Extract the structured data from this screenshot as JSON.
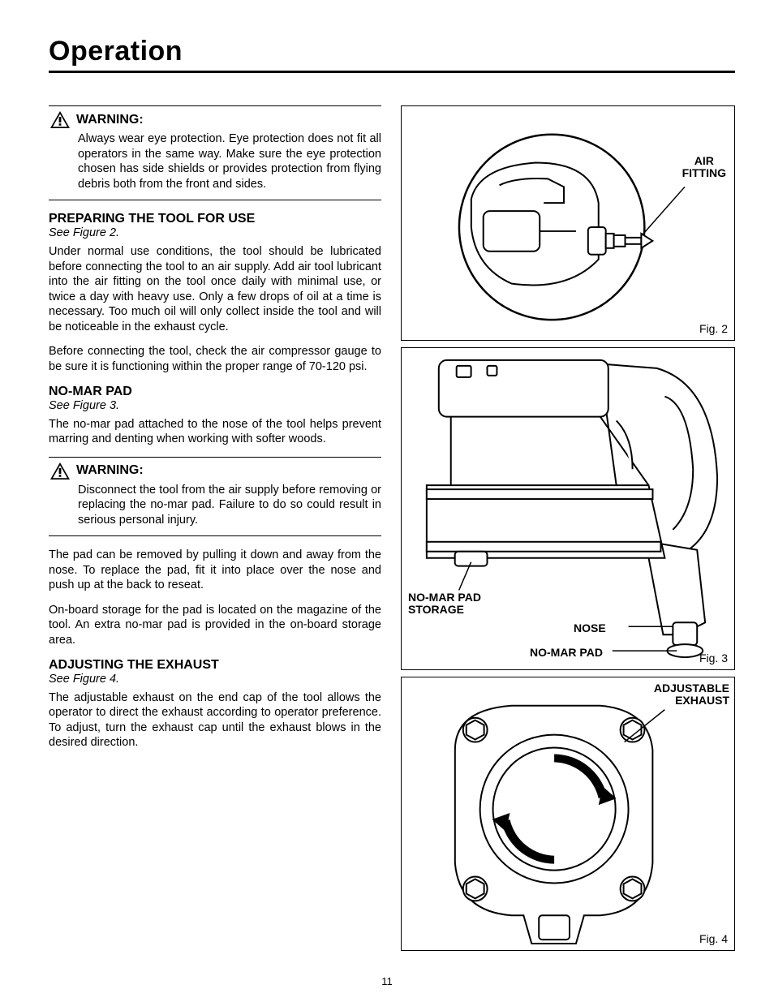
{
  "page_title": "Operation",
  "page_number": "11",
  "warning_label": "WARNING:",
  "warning1_body": "Always wear eye protection. Eye protection does not fit all operators in the same way. Make sure the eye protection chosen has side shields or provides protection from flying debris both from the front and sides.",
  "sec1": {
    "head": "PREPARING THE TOOL FOR USE",
    "see": "See Figure 2.",
    "p1": "Under normal use conditions, the tool should be lubricated before connecting the tool to an air supply. Add air tool lubricant into the air fitting on the tool once daily with minimal use, or twice a day with heavy use. Only a few drops of oil at a time is necessary. Too much oil will only collect inside the tool and will be noticeable in the exhaust cycle.",
    "p2": "Before connecting the tool, check the air compressor gauge to be sure it is functioning within the proper range of 70-120 psi."
  },
  "sec2": {
    "head": "NO-MAR PAD",
    "see": "See Figure 3.",
    "p1": "The no-mar pad attached to the nose of the tool helps prevent marring and denting when working with softer woods."
  },
  "warning2_body": "Disconnect the tool from the air supply before removing or replacing the no-mar pad. Failure to do so could result in serious personal injury.",
  "sec2b": {
    "p1": "The pad can be removed by pulling it down and away from the nose. To replace the pad, fit it into place over the nose and push up at the back to reseat.",
    "p2": "On-board storage for the pad is located on the magazine of the tool. An extra no-mar pad is provided in the on-board storage area."
  },
  "sec3": {
    "head": "ADJUSTING THE EXHAUST",
    "see": "See Figure 4.",
    "p1": "The adjustable exhaust on the end cap of the tool allows the operator to direct the exhaust according to operator preference. To adjust, turn the exhaust cap until the exhaust blows in the desired direction."
  },
  "fig2": {
    "caption": "Fig. 2",
    "callout_air": "AIR FITTING"
  },
  "fig3": {
    "caption": "Fig. 3",
    "callout_storage": "NO-MAR PAD STORAGE",
    "callout_nose": "NOSE",
    "callout_pad": "NO-MAR PAD"
  },
  "fig4": {
    "caption": "Fig. 4",
    "callout_exhaust": "ADJUSTABLE EXHAUST"
  },
  "colors": {
    "text": "#000000",
    "bg": "#ffffff",
    "rule": "#000000"
  }
}
